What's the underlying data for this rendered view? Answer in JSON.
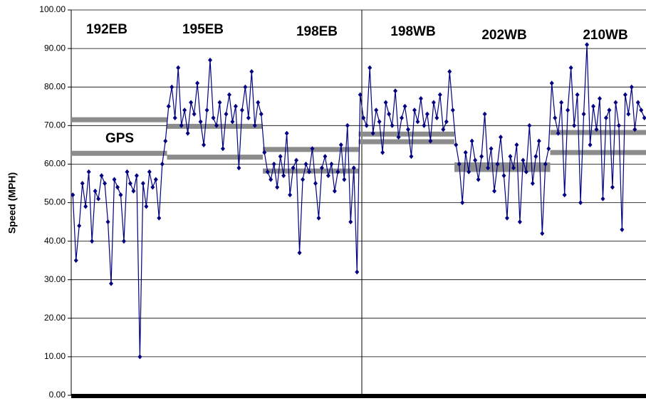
{
  "chart_data": {
    "type": "line",
    "y_label": "Speed (MPH)",
    "ylim": [
      0,
      100
    ],
    "yticks": [
      {
        "value": 0,
        "label": "0.00"
      },
      {
        "value": 10,
        "label": "10.00"
      },
      {
        "value": 20,
        "label": "20.00"
      },
      {
        "value": 30,
        "label": "30.00"
      },
      {
        "value": 40,
        "label": "40.00"
      },
      {
        "value": 50,
        "label": "50.00"
      },
      {
        "value": 60,
        "label": "60.00"
      },
      {
        "value": 70,
        "label": "70.00"
      },
      {
        "value": 80,
        "label": "80.00"
      },
      {
        "value": 90,
        "label": "90.00"
      },
      {
        "value": 100,
        "label": "100.00"
      }
    ],
    "grid": true,
    "segments": [
      "192EB",
      "195EB",
      "198EB",
      "198WB",
      "202WB",
      "210WB"
    ],
    "annotation": "GPS",
    "series": [
      {
        "color": "#000080",
        "values": [
          52,
          35,
          44,
          55,
          49,
          58,
          40,
          53,
          51,
          57,
          55,
          45,
          29,
          56,
          54,
          52,
          40,
          58,
          55,
          53,
          57,
          10,
          55,
          49,
          58,
          54,
          56,
          46,
          60,
          66,
          75,
          80,
          72,
          85,
          70,
          74,
          68,
          76,
          73,
          81,
          71,
          65,
          74,
          87,
          72,
          70,
          76,
          64,
          73,
          78,
          71,
          75,
          59,
          74,
          80,
          72,
          84,
          70,
          76,
          73,
          63,
          58,
          56,
          60,
          54,
          62,
          57,
          68,
          52,
          59,
          61,
          37,
          56,
          60,
          58,
          64,
          55,
          46,
          59,
          62,
          57,
          60,
          53,
          58,
          65,
          56,
          70,
          45,
          59,
          32,
          78,
          72,
          70,
          85,
          68,
          74,
          71,
          63,
          76,
          73,
          70,
          79,
          67,
          72,
          75,
          69,
          62,
          74,
          71,
          77,
          70,
          73,
          66,
          76,
          72,
          78,
          69,
          71,
          84,
          74,
          65,
          60,
          50,
          63,
          58,
          66,
          61,
          56,
          62,
          73,
          59,
          64,
          53,
          60,
          67,
          57,
          46,
          62,
          59,
          65,
          45,
          61,
          58,
          70,
          55,
          62,
          66,
          42,
          60,
          64,
          81,
          72,
          68,
          76,
          52,
          74,
          85,
          70,
          78,
          50,
          73,
          91,
          65,
          75,
          69,
          77,
          51,
          72,
          74,
          54,
          76,
          70,
          43,
          78,
          73,
          80,
          69,
          76,
          74,
          72
        ]
      }
    ],
    "gps": {
      "color": "#8c8c8c",
      "upper": [
        71.5,
        69.8,
        63.8,
        67.8,
        59.8,
        68.2
      ],
      "lower": [
        62.8,
        61.8,
        58.2,
        65.8,
        58.6,
        63.0
      ]
    }
  }
}
